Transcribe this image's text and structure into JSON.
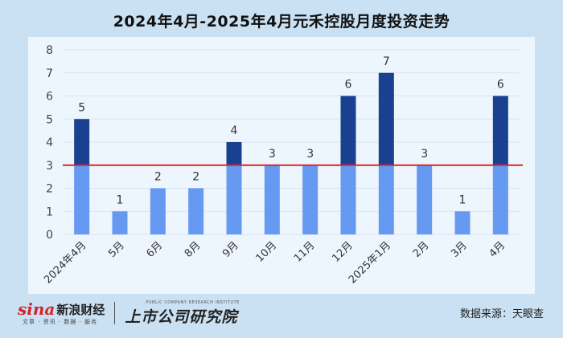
{
  "title": "2024年4月-2025年4月元禾控股月度投资走势",
  "chart_data": {
    "type": "bar",
    "categories": [
      "2024年4月",
      "5月",
      "6月",
      "8月",
      "9月",
      "10月",
      "11月",
      "12月",
      "2025年1月",
      "2月",
      "3月",
      "4月"
    ],
    "values": [
      5,
      1,
      2,
      2,
      4,
      3,
      3,
      6,
      7,
      3,
      1,
      6
    ],
    "ylim": [
      0,
      8
    ],
    "yticks": [
      0,
      1,
      2,
      3,
      4,
      5,
      6,
      7,
      8
    ],
    "reference_line": 3,
    "grid": true,
    "colors": {
      "below_line": "#6699f2",
      "above_line": "#1a418f",
      "reference": "#d9262e"
    }
  },
  "footer": {
    "brand_mark": "sina",
    "brand_text": "新浪财经",
    "brand_sub": "文章 · 资讯 · 数据 · 服务",
    "research_small": "PUBLIC COMPANY RESEARCH INSTITUTE",
    "research_main": "上市公司研究院",
    "source": "数据来源：天眼查"
  }
}
